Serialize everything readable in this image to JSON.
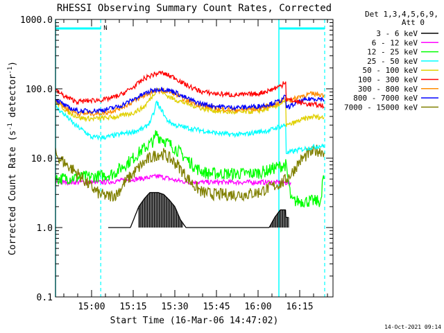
{
  "chart_data": {
    "type": "line",
    "title": "RHESSI Observing Summary Count Rates, Corrected",
    "xlabel": "Start Time (16-Mar-06 14:47:02)",
    "ylabel": "Corrected Count Rate (s",
    "ylabel_sup1": "-1",
    "ylabel_mid": " detector",
    "ylabel_sup2": "-1",
    "ylabel_end": ")",
    "yscale": "log",
    "ylim": [
      0.1,
      1000.0
    ],
    "y_ticks": [
      {
        "v": 0.1,
        "label": "0.1"
      },
      {
        "v": 1,
        "label": "1.0"
      },
      {
        "v": 10,
        "label": "10.0"
      },
      {
        "v": 100,
        "label": "100.0"
      },
      {
        "v": 1000,
        "label": "1000.0"
      }
    ],
    "xlim_min": [
      -13,
      87
    ],
    "x_ticks": [
      {
        "v": 0,
        "label": "15:00"
      },
      {
        "v": 15,
        "label": "15:15"
      },
      {
        "v": 30,
        "label": "15:30"
      },
      {
        "v": 45,
        "label": "15:45"
      },
      {
        "v": 60,
        "label": "16:00"
      },
      {
        "v": 75,
        "label": "16:15"
      }
    ],
    "legend_header": [
      "Det 1,3,4,5,6,9,",
      "Att 0"
    ],
    "legend_position": "right",
    "flag_label": "N",
    "flags": {
      "solid_lines": [
        -13,
        67.5
      ],
      "dashed_lines": [
        3.3,
        84
      ],
      "bars": [
        [
          -13,
          3.3
        ],
        [
          67.5,
          84
        ]
      ]
    },
    "series": [
      {
        "label": "3 - 6 keV",
        "color": "#000000",
        "points": [
          [
            6,
            1.0
          ],
          [
            14,
            1.0
          ],
          [
            17,
            2.0
          ],
          [
            19,
            2.6
          ],
          [
            21,
            3.2
          ],
          [
            24,
            3.2
          ],
          [
            26,
            3.0
          ],
          [
            28,
            2.5
          ],
          [
            30,
            2.0
          ],
          [
            32,
            1.3
          ],
          [
            34,
            1.0
          ],
          [
            46,
            1.0
          ],
          [
            55,
            1.0
          ],
          [
            64,
            1.0
          ],
          [
            66,
            1.4
          ],
          [
            68,
            1.8
          ],
          [
            70,
            1.8
          ],
          [
            71,
            1.4
          ]
        ]
      },
      {
        "label": "6 - 12 keV",
        "color": "#ff00ff",
        "points": [
          [
            -13,
            4.5
          ],
          [
            -3,
            4.5
          ],
          [
            5,
            4.5
          ],
          [
            12,
            4.8
          ],
          [
            16,
            5.0
          ],
          [
            20,
            5.2
          ],
          [
            24,
            5.5
          ],
          [
            27,
            5.2
          ],
          [
            30,
            4.8
          ],
          [
            35,
            4.5
          ],
          [
            45,
            4.5
          ],
          [
            55,
            4.5
          ],
          [
            65,
            4.5
          ],
          [
            72,
            4.4
          ]
        ]
      },
      {
        "label": "12 - 25 keV",
        "color": "#00ff00",
        "points": [
          [
            -13,
            5.0
          ],
          [
            -5,
            5.3
          ],
          [
            3,
            5.5
          ],
          [
            8,
            6.0
          ],
          [
            12,
            8.0
          ],
          [
            15,
            10.0
          ],
          [
            18,
            13.0
          ],
          [
            21,
            16.0
          ],
          [
            23,
            19.0
          ],
          [
            24,
            22.0
          ],
          [
            25,
            20.0
          ],
          [
            27,
            17.0
          ],
          [
            30,
            14.0
          ],
          [
            34,
            10.0
          ],
          [
            38,
            7.0
          ],
          [
            42,
            6.0
          ],
          [
            50,
            6.0
          ],
          [
            58,
            6.0
          ],
          [
            63,
            6.5
          ],
          [
            67,
            7.5
          ],
          [
            70,
            8.0
          ],
          [
            72,
            2.4
          ],
          [
            79,
            2.4
          ],
          [
            83,
            2.4
          ],
          [
            84,
            5.0
          ]
        ]
      },
      {
        "label": "25 - 50 keV",
        "color": "#00ffff",
        "points": [
          [
            -13,
            55
          ],
          [
            -9,
            40
          ],
          [
            -6,
            30
          ],
          [
            -3,
            25
          ],
          [
            0,
            20
          ],
          [
            5,
            20
          ],
          [
            10,
            22
          ],
          [
            15,
            24
          ],
          [
            19,
            27
          ],
          [
            21,
            33
          ],
          [
            23,
            50
          ],
          [
            24,
            62
          ],
          [
            25,
            52
          ],
          [
            27,
            36
          ],
          [
            30,
            30
          ],
          [
            35,
            27
          ],
          [
            40,
            25
          ],
          [
            45,
            23
          ],
          [
            50,
            22
          ],
          [
            55,
            22
          ],
          [
            60,
            24
          ],
          [
            64,
            25
          ],
          [
            67,
            28
          ],
          [
            70,
            30
          ],
          [
            71,
            12
          ],
          [
            74,
            13
          ],
          [
            78,
            14
          ],
          [
            82,
            15
          ],
          [
            84,
            15
          ]
        ]
      },
      {
        "label": "50 - 100 keV",
        "color": "#e0d000",
        "points": [
          [
            -13,
            65
          ],
          [
            -8,
            45
          ],
          [
            -4,
            38
          ],
          [
            0,
            37
          ],
          [
            5,
            38
          ],
          [
            10,
            40
          ],
          [
            15,
            45
          ],
          [
            19,
            55
          ],
          [
            22,
            80
          ],
          [
            24,
            105
          ],
          [
            25,
            95
          ],
          [
            27,
            80
          ],
          [
            30,
            70
          ],
          [
            35,
            60
          ],
          [
            40,
            52
          ],
          [
            45,
            48
          ],
          [
            50,
            46
          ],
          [
            55,
            46
          ],
          [
            60,
            48
          ],
          [
            64,
            52
          ],
          [
            67,
            58
          ],
          [
            70,
            65
          ],
          [
            71,
            30
          ],
          [
            75,
            35
          ],
          [
            80,
            40
          ],
          [
            84,
            38
          ]
        ]
      },
      {
        "label": "100 - 300 keV",
        "color": "#ff0000",
        "points": [
          [
            -13,
            95
          ],
          [
            -9,
            75
          ],
          [
            -5,
            65
          ],
          [
            0,
            68
          ],
          [
            5,
            70
          ],
          [
            10,
            80
          ],
          [
            15,
            105
          ],
          [
            19,
            140
          ],
          [
            22,
            160
          ],
          [
            25,
            170
          ],
          [
            27,
            160
          ],
          [
            30,
            145
          ],
          [
            33,
            120
          ],
          [
            37,
            100
          ],
          [
            40,
            90
          ],
          [
            45,
            85
          ],
          [
            50,
            82
          ],
          [
            55,
            82
          ],
          [
            60,
            85
          ],
          [
            64,
            95
          ],
          [
            67,
            105
          ],
          [
            69,
            115
          ],
          [
            70,
            125
          ],
          [
            71,
            70
          ],
          [
            74,
            65
          ],
          [
            78,
            60
          ],
          [
            82,
            58
          ],
          [
            84,
            57
          ]
        ]
      },
      {
        "label": "300 - 800 keV",
        "color": "#ff8c00",
        "points": [
          [
            -13,
            70
          ],
          [
            -9,
            52
          ],
          [
            -5,
            44
          ],
          [
            0,
            44
          ],
          [
            5,
            45
          ],
          [
            10,
            52
          ],
          [
            15,
            65
          ],
          [
            19,
            80
          ],
          [
            22,
            90
          ],
          [
            25,
            95
          ],
          [
            27,
            92
          ],
          [
            30,
            85
          ],
          [
            33,
            72
          ],
          [
            37,
            62
          ],
          [
            40,
            57
          ],
          [
            45,
            52
          ],
          [
            50,
            50
          ],
          [
            55,
            50
          ],
          [
            60,
            52
          ],
          [
            64,
            57
          ],
          [
            67,
            62
          ],
          [
            69,
            67
          ],
          [
            70,
            72
          ],
          [
            72,
            68
          ],
          [
            75,
            78
          ],
          [
            79,
            84
          ],
          [
            82,
            84
          ],
          [
            84,
            80
          ]
        ]
      },
      {
        "label": "800 - 7000 keV",
        "color": "#0000ff",
        "points": [
          [
            -13,
            72
          ],
          [
            -9,
            55
          ],
          [
            -5,
            48
          ],
          [
            0,
            48
          ],
          [
            5,
            50
          ],
          [
            10,
            56
          ],
          [
            15,
            70
          ],
          [
            19,
            85
          ],
          [
            22,
            95
          ],
          [
            25,
            100
          ],
          [
            27,
            97
          ],
          [
            30,
            90
          ],
          [
            33,
            77
          ],
          [
            37,
            66
          ],
          [
            40,
            60
          ],
          [
            45,
            56
          ],
          [
            50,
            54
          ],
          [
            55,
            54
          ],
          [
            60,
            56
          ],
          [
            64,
            60
          ],
          [
            67,
            65
          ],
          [
            69,
            70
          ],
          [
            70,
            75
          ],
          [
            71,
            55
          ],
          [
            75,
            65
          ],
          [
            79,
            72
          ],
          [
            82,
            72
          ],
          [
            84,
            70
          ]
        ]
      },
      {
        "label": "7000 - 15000 keV",
        "color": "#808000",
        "points": [
          [
            -13,
            11.5
          ],
          [
            -11,
            9.5
          ],
          [
            -8,
            7.5
          ],
          [
            -5,
            6.0
          ],
          [
            -2,
            4.5
          ],
          [
            0,
            3.8
          ],
          [
            3,
            3.0
          ],
          [
            6,
            2.8
          ],
          [
            9,
            3.0
          ],
          [
            12,
            4.5
          ],
          [
            15,
            6.0
          ],
          [
            18,
            8.0
          ],
          [
            21,
            10.0
          ],
          [
            24,
            11.5
          ],
          [
            26,
            11.5
          ],
          [
            28,
            10.0
          ],
          [
            31,
            8.0
          ],
          [
            34,
            5.5
          ],
          [
            37,
            4.0
          ],
          [
            40,
            3.2
          ],
          [
            45,
            3.0
          ],
          [
            50,
            3.0
          ],
          [
            55,
            3.0
          ],
          [
            60,
            3.2
          ],
          [
            63,
            3.6
          ],
          [
            66,
            4.0
          ],
          [
            69,
            4.5
          ],
          [
            72,
            6.0
          ],
          [
            75,
            9.0
          ],
          [
            78,
            11.5
          ],
          [
            81,
            13.0
          ],
          [
            84,
            12.5
          ]
        ]
      }
    ]
  },
  "footer_timestamp": "14-Oct-2021 09:14"
}
